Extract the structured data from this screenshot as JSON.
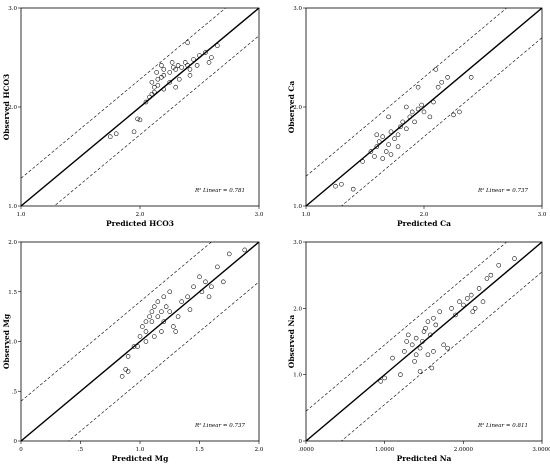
{
  "chart_data": [
    {
      "type": "scatter",
      "xlabel": "Predicted HCO3",
      "ylabel": "Observed HCO3",
      "xlim": [
        1.0,
        3.0
      ],
      "ylim": [
        1.0,
        3.0
      ],
      "xticks": [
        "1.0",
        "2.0",
        "3.0"
      ],
      "yticks": [
        "1.0",
        "2.0",
        "3.0"
      ],
      "r2_label": "R² Linear = 0.781",
      "fit_line": [
        [
          1.0,
          1.0
        ],
        [
          3.0,
          3.0
        ]
      ],
      "upper_band": [
        [
          1.0,
          1.28
        ],
        [
          3.0,
          3.28
        ]
      ],
      "lower_band": [
        [
          1.0,
          0.72
        ],
        [
          3.0,
          2.72
        ]
      ],
      "points": [
        [
          1.75,
          1.7
        ],
        [
          1.8,
          1.73
        ],
        [
          1.95,
          1.75
        ],
        [
          2.0,
          1.87
        ],
        [
          1.98,
          1.88
        ],
        [
          2.05,
          2.05
        ],
        [
          2.08,
          2.1
        ],
        [
          2.1,
          2.13
        ],
        [
          2.12,
          2.15
        ],
        [
          2.12,
          2.2
        ],
        [
          2.15,
          2.22
        ],
        [
          2.1,
          2.25
        ],
        [
          2.15,
          2.28
        ],
        [
          2.18,
          2.3
        ],
        [
          2.2,
          2.32
        ],
        [
          2.14,
          2.35
        ],
        [
          2.2,
          2.38
        ],
        [
          2.25,
          2.35
        ],
        [
          2.28,
          2.4
        ],
        [
          2.3,
          2.38
        ],
        [
          2.32,
          2.42
        ],
        [
          2.35,
          2.4
        ],
        [
          2.38,
          2.45
        ],
        [
          2.4,
          2.42
        ],
        [
          2.42,
          2.38
        ],
        [
          2.45,
          2.48
        ],
        [
          2.48,
          2.42
        ],
        [
          2.5,
          2.52
        ],
        [
          2.55,
          2.55
        ],
        [
          2.58,
          2.45
        ],
        [
          2.6,
          2.5
        ],
        [
          2.65,
          2.62
        ],
        [
          2.4,
          2.65
        ],
        [
          2.2,
          2.18
        ],
        [
          2.25,
          2.25
        ],
        [
          2.3,
          2.2
        ],
        [
          2.33,
          2.28
        ],
        [
          2.42,
          2.32
        ],
        [
          2.18,
          2.42
        ],
        [
          2.27,
          2.45
        ]
      ]
    },
    {
      "type": "scatter",
      "xlabel": "Predicted Ca",
      "ylabel": "Observed Ca",
      "xlim": [
        1.0,
        3.0
      ],
      "ylim": [
        1.0,
        3.0
      ],
      "xticks": [
        "1.0",
        "2.0",
        "3.0"
      ],
      "yticks": [
        "1.0",
        "2.0",
        "3.0"
      ],
      "r2_label": "R² Linear = 0.737",
      "fit_line": [
        [
          1.0,
          1.0
        ],
        [
          3.0,
          3.0
        ]
      ],
      "upper_band": [
        [
          1.0,
          1.3
        ],
        [
          3.0,
          3.3
        ]
      ],
      "lower_band": [
        [
          1.0,
          0.7
        ],
        [
          3.0,
          2.7
        ]
      ],
      "points": [
        [
          1.25,
          1.2
        ],
        [
          1.3,
          1.22
        ],
        [
          1.4,
          1.17
        ],
        [
          1.48,
          1.45
        ],
        [
          1.55,
          1.55
        ],
        [
          1.58,
          1.5
        ],
        [
          1.6,
          1.6
        ],
        [
          1.62,
          1.65
        ],
        [
          1.65,
          1.7
        ],
        [
          1.68,
          1.55
        ],
        [
          1.7,
          1.62
        ],
        [
          1.72,
          1.75
        ],
        [
          1.75,
          1.68
        ],
        [
          1.78,
          1.72
        ],
        [
          1.8,
          1.8
        ],
        [
          1.82,
          1.85
        ],
        [
          1.85,
          1.78
        ],
        [
          1.88,
          1.9
        ],
        [
          1.9,
          1.95
        ],
        [
          1.92,
          1.85
        ],
        [
          1.95,
          1.98
        ],
        [
          1.98,
          2.02
        ],
        [
          2.0,
          1.95
        ],
        [
          2.05,
          1.9
        ],
        [
          2.08,
          2.05
        ],
        [
          2.12,
          2.2
        ],
        [
          2.15,
          2.25
        ],
        [
          2.2,
          2.3
        ],
        [
          2.25,
          1.92
        ],
        [
          2.3,
          1.95
        ],
        [
          2.4,
          2.3
        ],
        [
          1.65,
          1.48
        ],
        [
          1.72,
          1.52
        ],
        [
          1.78,
          1.6
        ],
        [
          1.6,
          1.72
        ],
        [
          1.7,
          1.9
        ],
        [
          1.85,
          2.0
        ],
        [
          1.95,
          2.2
        ],
        [
          2.1,
          2.38
        ]
      ]
    },
    {
      "type": "scatter",
      "xlabel": "Predicted Mg",
      "ylabel": "Observed Mg",
      "xlim": [
        0.0,
        2.0
      ],
      "ylim": [
        0.0,
        2.0
      ],
      "xticks": [
        "0",
        ".5",
        "1.0",
        "1.5",
        "2.0"
      ],
      "yticks": [
        "0",
        ".5",
        "1.0",
        "1.5",
        "2.0"
      ],
      "r2_label": "R² Linear = 0.737",
      "fit_line": [
        [
          0.0,
          0.0
        ],
        [
          2.0,
          2.0
        ]
      ],
      "upper_band": [
        [
          0.0,
          0.4
        ],
        [
          2.0,
          2.4
        ]
      ],
      "lower_band": [
        [
          0.0,
          -0.4
        ],
        [
          2.0,
          1.6
        ]
      ],
      "points": [
        [
          0.85,
          0.65
        ],
        [
          0.88,
          0.72
        ],
        [
          0.9,
          0.7
        ],
        [
          0.9,
          0.85
        ],
        [
          0.95,
          0.95
        ],
        [
          1.0,
          1.05
        ],
        [
          1.02,
          1.15
        ],
        [
          1.05,
          1.2
        ],
        [
          1.05,
          1.1
        ],
        [
          1.08,
          1.25
        ],
        [
          1.1,
          1.3
        ],
        [
          1.1,
          1.2
        ],
        [
          1.12,
          1.35
        ],
        [
          1.15,
          1.25
        ],
        [
          1.15,
          1.4
        ],
        [
          1.18,
          1.3
        ],
        [
          1.2,
          1.2
        ],
        [
          1.2,
          1.45
        ],
        [
          1.22,
          1.35
        ],
        [
          1.25,
          1.3
        ],
        [
          1.28,
          1.15
        ],
        [
          1.3,
          1.1
        ],
        [
          1.32,
          1.25
        ],
        [
          1.35,
          1.4
        ],
        [
          1.4,
          1.45
        ],
        [
          1.45,
          1.55
        ],
        [
          1.5,
          1.65
        ],
        [
          1.52,
          1.5
        ],
        [
          1.55,
          1.6
        ],
        [
          1.6,
          1.55
        ],
        [
          1.65,
          1.75
        ],
        [
          1.7,
          1.6
        ],
        [
          1.75,
          1.88
        ],
        [
          1.88,
          1.92
        ],
        [
          1.05,
          1.0
        ],
        [
          1.12,
          1.05
        ],
        [
          1.18,
          1.1
        ],
        [
          1.25,
          1.5
        ],
        [
          1.42,
          1.32
        ],
        [
          1.58,
          1.45
        ],
        [
          0.98,
          0.95
        ]
      ]
    },
    {
      "type": "scatter",
      "xlabel": "Predicted Na",
      "ylabel": "Observed Na",
      "xlim": [
        0.0,
        3.0
      ],
      "ylim": [
        0.0,
        3.0
      ],
      "xticks": [
        ".0000",
        "1.0000",
        "2.0000",
        "3.0000"
      ],
      "yticks": [
        "0",
        "1.0",
        "2.0",
        "3.0"
      ],
      "r2_label": "R² Linear = 0.811",
      "fit_line": [
        [
          0.0,
          0.0
        ],
        [
          3.0,
          3.0
        ]
      ],
      "upper_band": [
        [
          0.0,
          0.45
        ],
        [
          3.0,
          3.45
        ]
      ],
      "lower_band": [
        [
          0.0,
          -0.45
        ],
        [
          3.0,
          2.55
        ]
      ],
      "points": [
        [
          0.95,
          0.9
        ],
        [
          1.0,
          0.95
        ],
        [
          1.1,
          1.25
        ],
        [
          1.2,
          1.0
        ],
        [
          1.25,
          1.35
        ],
        [
          1.3,
          1.6
        ],
        [
          1.35,
          1.45
        ],
        [
          1.4,
          1.55
        ],
        [
          1.4,
          1.3
        ],
        [
          1.45,
          1.4
        ],
        [
          1.48,
          1.5
        ],
        [
          1.5,
          1.65
        ],
        [
          1.52,
          1.7
        ],
        [
          1.55,
          1.8
        ],
        [
          1.55,
          1.3
        ],
        [
          1.58,
          1.6
        ],
        [
          1.6,
          1.1
        ],
        [
          1.62,
          1.85
        ],
        [
          1.65,
          1.75
        ],
        [
          1.7,
          1.95
        ],
        [
          1.75,
          1.45
        ],
        [
          1.8,
          1.4
        ],
        [
          1.85,
          2.0
        ],
        [
          1.9,
          1.9
        ],
        [
          1.95,
          2.1
        ],
        [
          2.0,
          2.05
        ],
        [
          2.05,
          2.15
        ],
        [
          2.1,
          2.2
        ],
        [
          2.15,
          2.0
        ],
        [
          2.2,
          2.3
        ],
        [
          2.25,
          2.1
        ],
        [
          2.3,
          2.45
        ],
        [
          2.35,
          2.5
        ],
        [
          2.45,
          2.65
        ],
        [
          2.65,
          2.75
        ],
        [
          1.38,
          1.2
        ],
        [
          1.45,
          1.05
        ],
        [
          1.62,
          1.35
        ],
        [
          2.12,
          1.95
        ],
        [
          1.28,
          1.5
        ]
      ]
    }
  ]
}
